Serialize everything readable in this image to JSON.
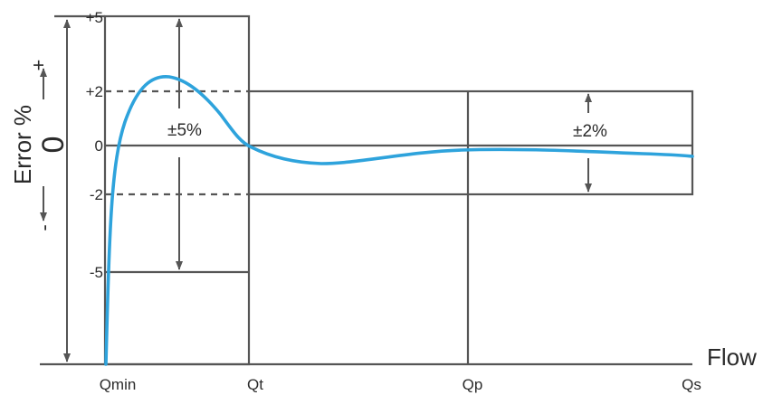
{
  "figure": {
    "y_axis_title": "Error %",
    "x_axis_title": "Flow",
    "plus_sign": "+",
    "minus_sign": "-",
    "zero_label": "0",
    "y_ticks": [
      "+5",
      "+2",
      "0",
      "-2",
      "-5"
    ],
    "x_ticks": [
      "Qmin",
      "Qt",
      "Qp",
      "Qs"
    ],
    "band_low_label": "±5%",
    "band_high_label": "±2%",
    "curve_color": "#2ea3dc",
    "line_color": "#555555"
  }
}
